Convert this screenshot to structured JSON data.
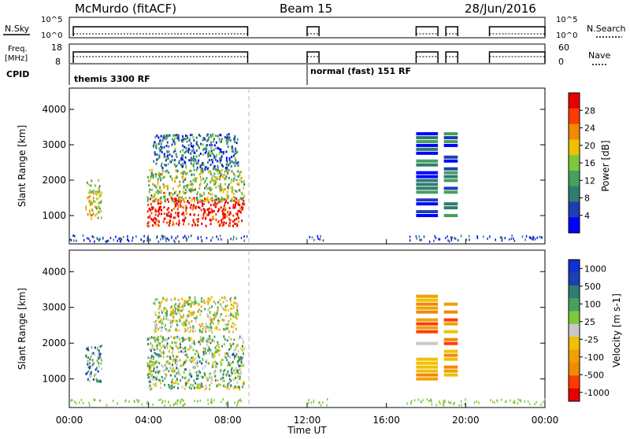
{
  "header": {
    "station": "McMurdo (fitACF)",
    "beam": "Beam 15",
    "date": "28/Jun/2016"
  },
  "top_panels": {
    "nsky_label": "N.Sky",
    "nsky_ticks": [
      "10^5",
      "10^0"
    ],
    "nsearch_label": "N.Search",
    "nsearch_ticks": [
      "10^5",
      "10^0"
    ],
    "freq_label": "Freq.",
    "freq_unit": "[MHz]",
    "freq_ticks": [
      "18",
      "8"
    ],
    "nave_label": "Nave",
    "nave_ticks": [
      "60",
      "0"
    ],
    "cpid_label": "CPID",
    "cpid_modes": [
      {
        "label": "themis 3300 RF",
        "start_hr": 0.0
      },
      {
        "label": "normal (fast) 151 RF",
        "start_hr": 12.0
      }
    ]
  },
  "chart_data": [
    {
      "type": "heatmap",
      "name": "power",
      "ylabel": "Slant Range [km]",
      "xlabel": "Time UT",
      "xlim": [
        0,
        24
      ],
      "ylim": [
        200,
        4600
      ],
      "yticks": [
        "1000",
        "2000",
        "3000",
        "4000"
      ],
      "colorbar_label": "Power [dB]",
      "colorbar_ticks": [
        "4",
        "8",
        "12",
        "16",
        "20",
        "24",
        "28"
      ],
      "colorbar_colors": [
        "#0000ff",
        "#1c3fb3",
        "#2e7d6e",
        "#46a060",
        "#7ec83c",
        "#f0c000",
        "#f08a00",
        "#ff3c00",
        "#e80000"
      ],
      "scatter_regions": [
        {
          "t": [
            0.8,
            1.6
          ],
          "r": [
            900,
            2000
          ],
          "level": 0.55
        },
        {
          "t": [
            3.9,
            8.8
          ],
          "r": [
            700,
            1500
          ],
          "level": 0.95
        },
        {
          "t": [
            3.9,
            8.8
          ],
          "r": [
            1400,
            2300
          ],
          "level": 0.5
        },
        {
          "t": [
            4.2,
            8.5
          ],
          "r": [
            2300,
            3300
          ],
          "level": 0.25
        },
        {
          "t": [
            17.5,
            18.6
          ],
          "r": [
            1000,
            3400
          ],
          "level": 0.2
        },
        {
          "t": [
            18.9,
            19.6
          ],
          "r": [
            1000,
            3400
          ],
          "level": 0.25
        }
      ]
    },
    {
      "type": "heatmap",
      "name": "velocity",
      "ylabel": "Slant Range [km]",
      "xlabel": "Time UT",
      "xlim": [
        0,
        24
      ],
      "ylim": [
        200,
        4600
      ],
      "yticks": [
        "1000",
        "2000",
        "3000",
        "4000"
      ],
      "colorbar_label": "Velocity [m s-1]",
      "colorbar_ticks": [
        "1000",
        "500",
        "100",
        "25",
        "-25",
        "-100",
        "-500",
        "-1000"
      ],
      "colorbar_colors": [
        "#1030d0",
        "#1c3fb3",
        "#2e7d6e",
        "#46a060",
        "#7ec83c",
        "#c8c8c8",
        "#f0c000",
        "#f0a000",
        "#f08a00",
        "#ff3c00",
        "#e80000"
      ],
      "scatter_regions": [
        {
          "t": [
            0.8,
            1.6
          ],
          "r": [
            900,
            2000
          ],
          "level": 0.3
        },
        {
          "t": [
            3.9,
            8.8
          ],
          "r": [
            700,
            2200
          ],
          "level": 0.4
        },
        {
          "t": [
            4.2,
            8.5
          ],
          "r": [
            2300,
            3300
          ],
          "level": 0.5
        },
        {
          "t": [
            17.5,
            18.6
          ],
          "r": [
            1000,
            3400
          ],
          "level": 0.7
        },
        {
          "t": [
            18.9,
            19.6
          ],
          "r": [
            1000,
            3400
          ],
          "level": 0.75
        }
      ]
    }
  ],
  "x_axis": {
    "ticks": [
      "00:00",
      "04:00",
      "08:00",
      "12:00",
      "16:00",
      "20:00",
      "00:00"
    ],
    "label": "Time UT"
  }
}
